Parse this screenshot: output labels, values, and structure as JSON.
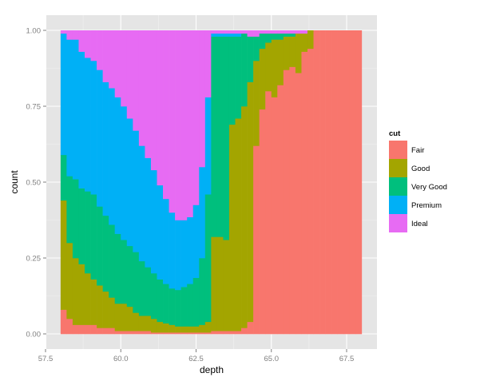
{
  "chart_data": {
    "type": "bar",
    "subtype": "stacked-fill-histogram",
    "title": "",
    "xlabel": "depth",
    "ylabel": "count",
    "xlim": [
      57.0,
      68.5
    ],
    "ylim": [
      0,
      1
    ],
    "x_ticks": [
      57.5,
      60.0,
      62.5,
      65.0,
      67.5
    ],
    "x_tick_labels": [
      "57.5",
      "60.0",
      "62.5",
      "65.0",
      "67.5"
    ],
    "y_ticks": [
      0,
      0.25,
      0.5,
      0.75,
      1.0
    ],
    "y_tick_labels": [
      "0.00",
      "0.25",
      "0.50",
      "0.75",
      "1.00"
    ],
    "grid": true,
    "legend": {
      "title": "cut",
      "position": "right",
      "entries": [
        {
          "label": "Fair",
          "color": "#F8766D"
        },
        {
          "label": "Good",
          "color": "#A3A500"
        },
        {
          "label": "Very Good",
          "color": "#00BF7D"
        },
        {
          "label": "Premium",
          "color": "#00B0F6"
        },
        {
          "label": "Ideal",
          "color": "#E76BF3"
        }
      ]
    },
    "x_bins": [
      58.0,
      58.2,
      58.4,
      58.6,
      58.8,
      59.0,
      59.2,
      59.4,
      59.6,
      59.8,
      60.0,
      60.2,
      60.4,
      60.6,
      60.8,
      61.0,
      61.2,
      61.4,
      61.6,
      61.8,
      62.0,
      62.2,
      62.4,
      62.6,
      62.8,
      63.0,
      63.2,
      63.4,
      63.6,
      63.8,
      64.0,
      64.2,
      64.4,
      64.6,
      64.8,
      65.0,
      65.2,
      65.4,
      65.6,
      65.8,
      66.0,
      66.2,
      66.4,
      66.6,
      66.8,
      67.0,
      67.2,
      67.4,
      67.6,
      67.8
    ],
    "bin_width": 0.2,
    "series": [
      {
        "name": "Fair",
        "values": [
          0.08,
          0.05,
          0.03,
          0.03,
          0.03,
          0.03,
          0.02,
          0.02,
          0.02,
          0.01,
          0.01,
          0.01,
          0.01,
          0.01,
          0.01,
          0.005,
          0.005,
          0.005,
          0.005,
          0.005,
          0.005,
          0.005,
          0.005,
          0.005,
          0.005,
          0.01,
          0.01,
          0.01,
          0.01,
          0.01,
          0.02,
          0.04,
          0.62,
          0.74,
          0.8,
          0.78,
          0.82,
          0.87,
          0.88,
          0.86,
          0.93,
          0.94,
          1.0,
          1.0,
          1.0,
          1.0,
          1.0,
          1.0,
          1.0,
          1.0
        ]
      },
      {
        "name": "Good",
        "values": [
          0.36,
          0.25,
          0.22,
          0.2,
          0.17,
          0.15,
          0.14,
          0.12,
          0.1,
          0.09,
          0.09,
          0.08,
          0.06,
          0.05,
          0.05,
          0.045,
          0.035,
          0.03,
          0.025,
          0.02,
          0.02,
          0.02,
          0.02,
          0.025,
          0.035,
          0.31,
          0.31,
          0.3,
          0.68,
          0.7,
          0.73,
          0.79,
          0.28,
          0.2,
          0.16,
          0.19,
          0.15,
          0.11,
          0.1,
          0.13,
          0.06,
          0.06,
          0.0,
          0.0,
          0.0,
          0.0,
          0.0,
          0.0,
          0.0,
          0.0
        ]
      },
      {
        "name": "Very Good",
        "values": [
          0.15,
          0.22,
          0.26,
          0.25,
          0.27,
          0.28,
          0.26,
          0.25,
          0.24,
          0.23,
          0.21,
          0.2,
          0.2,
          0.18,
          0.16,
          0.15,
          0.14,
          0.13,
          0.12,
          0.12,
          0.13,
          0.14,
          0.16,
          0.22,
          0.42,
          0.66,
          0.66,
          0.67,
          0.29,
          0.27,
          0.24,
          0.15,
          0.08,
          0.05,
          0.03,
          0.02,
          0.02,
          0.01,
          0.01,
          0.0,
          0.0,
          0.0,
          0.0,
          0.0,
          0.0,
          0.0,
          0.0,
          0.0,
          0.0,
          0.0
        ]
      },
      {
        "name": "Premium",
        "values": [
          0.4,
          0.45,
          0.46,
          0.45,
          0.44,
          0.44,
          0.45,
          0.44,
          0.45,
          0.45,
          0.44,
          0.42,
          0.4,
          0.38,
          0.36,
          0.34,
          0.31,
          0.28,
          0.25,
          0.23,
          0.22,
          0.22,
          0.24,
          0.3,
          0.32,
          0.01,
          0.01,
          0.01,
          0.01,
          0.01,
          0.0,
          0.0,
          0.0,
          0.0,
          0.0,
          0.0,
          0.0,
          0.0,
          0.0,
          0.0,
          0.0,
          0.0,
          0.0,
          0.0,
          0.0,
          0.0,
          0.0,
          0.0,
          0.0,
          0.0
        ]
      },
      {
        "name": "Ideal",
        "values": [
          0.01,
          0.03,
          0.03,
          0.07,
          0.09,
          0.1,
          0.13,
          0.17,
          0.19,
          0.22,
          0.25,
          0.29,
          0.33,
          0.38,
          0.42,
          0.46,
          0.51,
          0.56,
          0.6,
          0.63,
          0.63,
          0.62,
          0.58,
          0.45,
          0.23,
          0.01,
          0.01,
          0.01,
          0.01,
          0.01,
          0.01,
          0.02,
          0.02,
          0.01,
          0.01,
          0.01,
          0.01,
          0.01,
          0.01,
          0.01,
          0.01,
          0.0,
          0.0,
          0.0,
          0.0,
          0.0,
          0.0,
          0.0,
          0.0,
          0.0
        ]
      }
    ]
  }
}
